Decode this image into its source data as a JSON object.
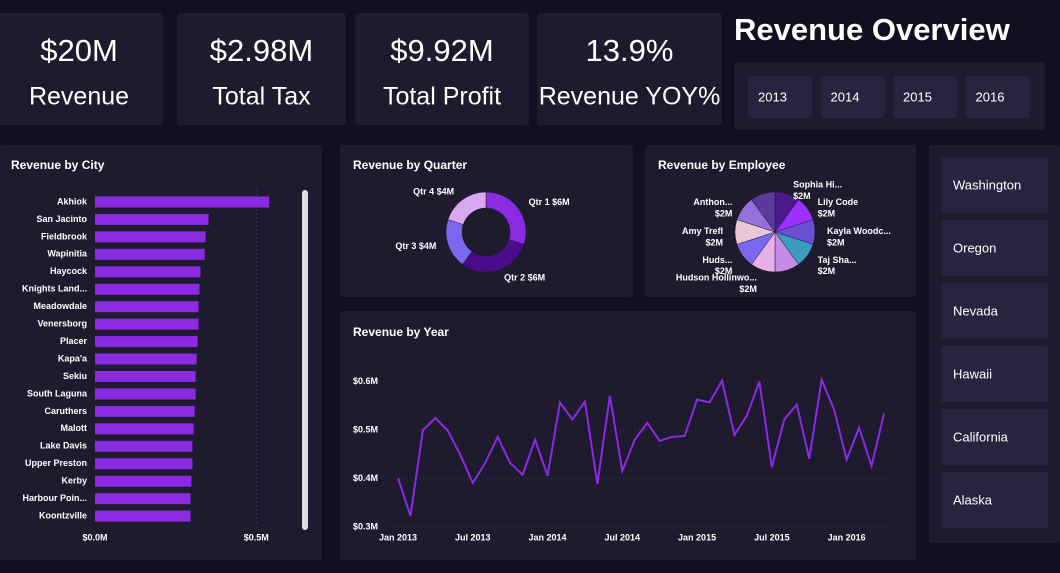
{
  "title": "Revenue Overview",
  "kpis": [
    {
      "value": "$20M",
      "label": "Revenue"
    },
    {
      "value": "$2.98M",
      "label": "Total Tax"
    },
    {
      "value": "$9.92M",
      "label": "Total Profit"
    },
    {
      "value": "13.9%",
      "label": "Revenue YOY%"
    }
  ],
  "year_filter": [
    "2013",
    "2014",
    "2015",
    "2016"
  ],
  "state_filter": [
    "Washington",
    "Oregon",
    "Nevada",
    "Hawaii",
    "California",
    "Alaska"
  ],
  "chart_data": [
    {
      "type": "bar",
      "orientation": "horizontal",
      "title": "Revenue by City",
      "categories": [
        "Akhiok",
        "San Jacinto",
        "Fieldbrook",
        "Wapinitia",
        "Haycock",
        "Knights Land...",
        "Meadowdale",
        "Venersborg",
        "Placer",
        "Kapa'a",
        "Sekiu",
        "South Laguna",
        "Caruthers",
        "Malott",
        "Lake Davis",
        "Upper Preston",
        "Kerby",
        "Harbour Poin...",
        "Koontzville"
      ],
      "values": [
        0.54,
        0.352,
        0.343,
        0.34,
        0.327,
        0.324,
        0.321,
        0.321,
        0.318,
        0.315,
        0.312,
        0.312,
        0.309,
        0.306,
        0.302,
        0.302,
        0.299,
        0.296,
        0.296
      ],
      "color": "#8a2be2",
      "xlim": [
        0,
        0.62
      ],
      "xticks": [
        {
          "value": 0,
          "label": "$0.0M"
        },
        {
          "value": 0.5,
          "label": "$0.5M"
        }
      ],
      "grid": true
    },
    {
      "type": "donut",
      "title": "Revenue by Quarter",
      "categories": [
        "Qtr 1",
        "Qtr 2",
        "Qtr 3",
        "Qtr 4"
      ],
      "values": [
        6,
        6,
        4,
        4
      ],
      "value_labels": [
        "$6M",
        "$6M",
        "$4M",
        "$4M"
      ],
      "colors": [
        "#8a2be2",
        "#4b0c8c",
        "#7b68ee",
        "#d9a6f0"
      ]
    },
    {
      "type": "pie",
      "title": "Revenue by Employee",
      "categories": [
        "Sophia Hi...",
        "Lily Code",
        "Kayla Woodc...",
        "Taj Sha...",
        null,
        "Hudson Hollinwo...",
        "Huds...",
        "Amy Trefl",
        "Anthon...",
        null
      ],
      "values": [
        2,
        2,
        2,
        2,
        2,
        2,
        2,
        2,
        2,
        2
      ],
      "value_labels": [
        "$2M",
        "$2M",
        "$2M",
        "$2M",
        null,
        "$2M",
        "$2M",
        "$2M",
        "$2M",
        null
      ],
      "colors": [
        "#4b1a8a",
        "#9b30ff",
        "#6a4fd0",
        "#3a9cc0",
        "#c58ae8",
        "#e8b0e8",
        "#7b68ee",
        "#e8c8d8",
        "#9370db",
        "#5a3a9a"
      ]
    },
    {
      "type": "line",
      "title": "Revenue by Year",
      "categories": [
        "Jan 2013",
        null,
        null,
        null,
        null,
        null,
        "Jul 2013",
        null,
        null,
        null,
        null,
        null,
        "Jan 2014",
        null,
        null,
        null,
        null,
        null,
        "Jul 2014",
        null,
        null,
        null,
        null,
        null,
        "Jan 2015",
        null,
        null,
        null,
        null,
        null,
        "Jul 2015",
        null,
        null,
        null,
        null,
        null,
        "Jan 2016",
        null,
        null,
        null
      ],
      "values": [
        0.401,
        0.323,
        0.5,
        0.525,
        0.499,
        0.449,
        0.391,
        0.432,
        0.486,
        0.432,
        0.408,
        0.48,
        0.406,
        0.557,
        0.522,
        0.559,
        0.389,
        0.571,
        0.416,
        0.48,
        0.515,
        0.478,
        0.486,
        0.488,
        0.563,
        0.557,
        0.602,
        0.49,
        0.53,
        0.6,
        0.424,
        0.522,
        0.553,
        0.441,
        0.604,
        0.542,
        0.439,
        0.505,
        0.426,
        0.534
      ],
      "color": "#8a2be2",
      "ylim": [
        0.3,
        0.62
      ],
      "yticks": [
        {
          "value": 0.3,
          "label": "$0.3M"
        },
        {
          "value": 0.4,
          "label": "$0.4M"
        },
        {
          "value": 0.5,
          "label": "$0.5M"
        },
        {
          "value": 0.6,
          "label": "$0.6M"
        }
      ],
      "grid": true
    }
  ]
}
